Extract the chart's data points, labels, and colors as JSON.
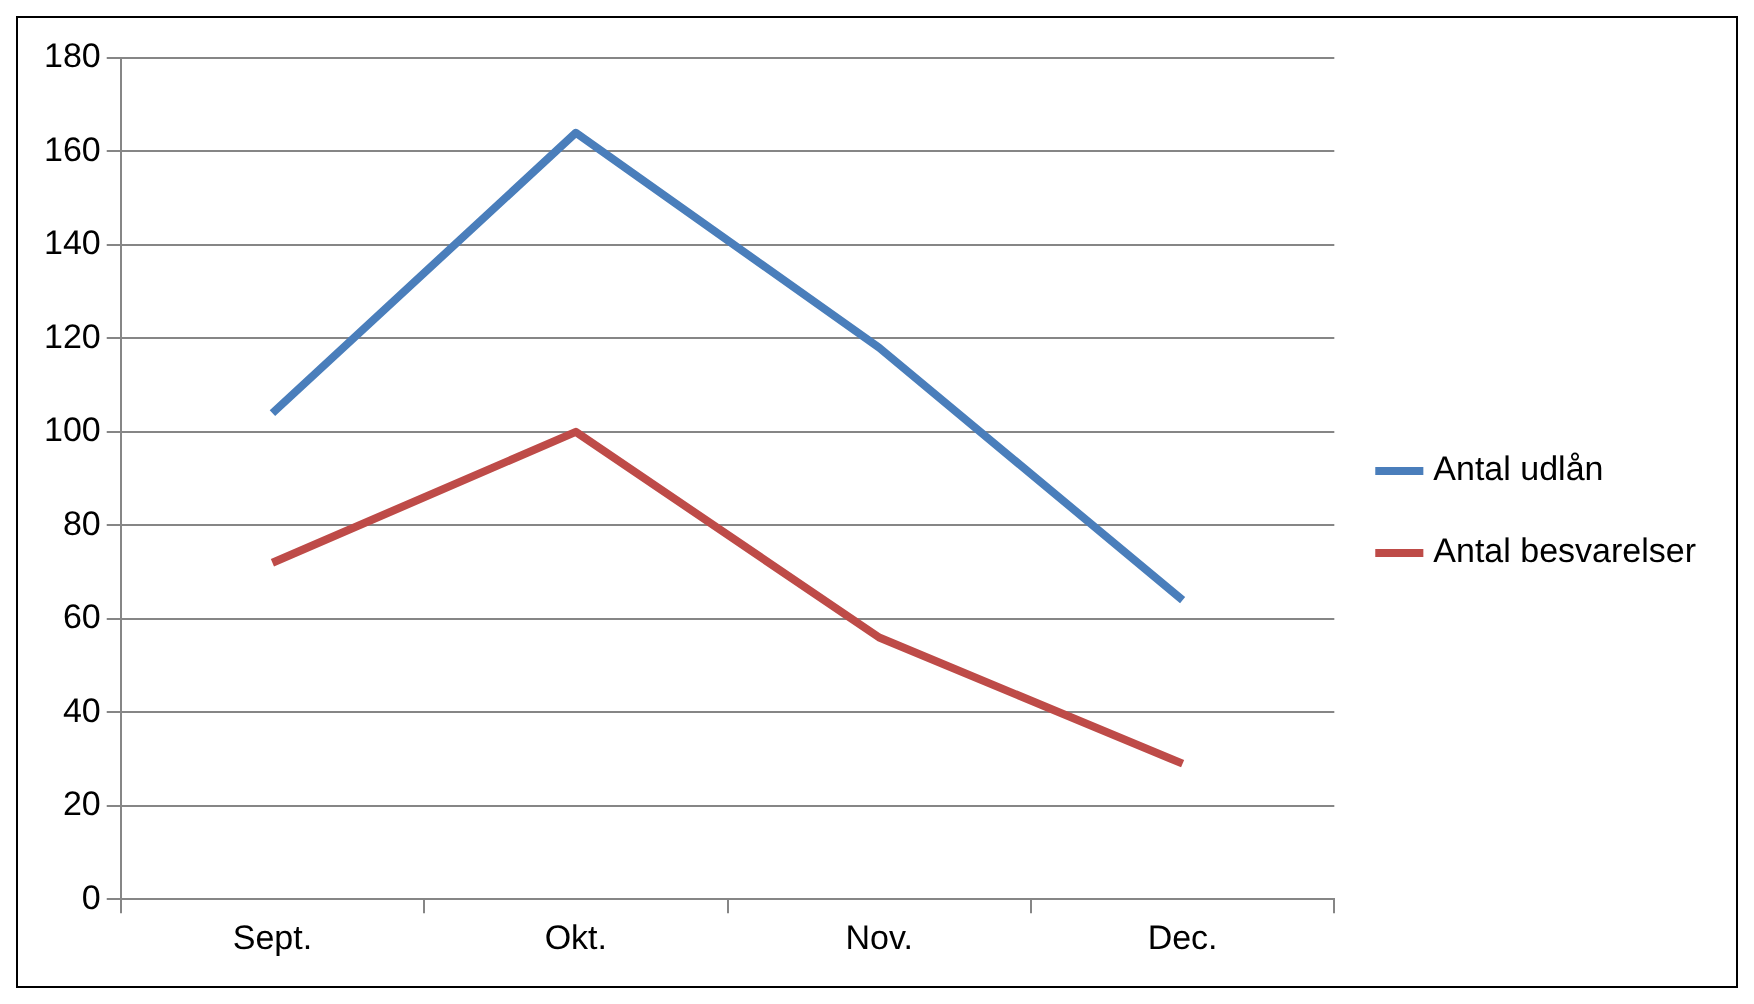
{
  "chart_data": {
    "type": "line",
    "categories": [
      "Sept.",
      "Okt.",
      "Nov.",
      "Dec."
    ],
    "series": [
      {
        "name": "Antal udlån",
        "color": "#4a7ebb",
        "values": [
          104,
          164,
          118,
          64
        ]
      },
      {
        "name": "Antal besvarelser",
        "color": "#be4b48",
        "values": [
          72,
          100,
          56,
          29
        ]
      }
    ],
    "ylim": [
      0,
      180
    ],
    "yticks": [
      0,
      20,
      40,
      60,
      80,
      100,
      120,
      140,
      160,
      180
    ],
    "grid": "y",
    "legend": "right",
    "marker": "none",
    "line_style": "solid"
  }
}
